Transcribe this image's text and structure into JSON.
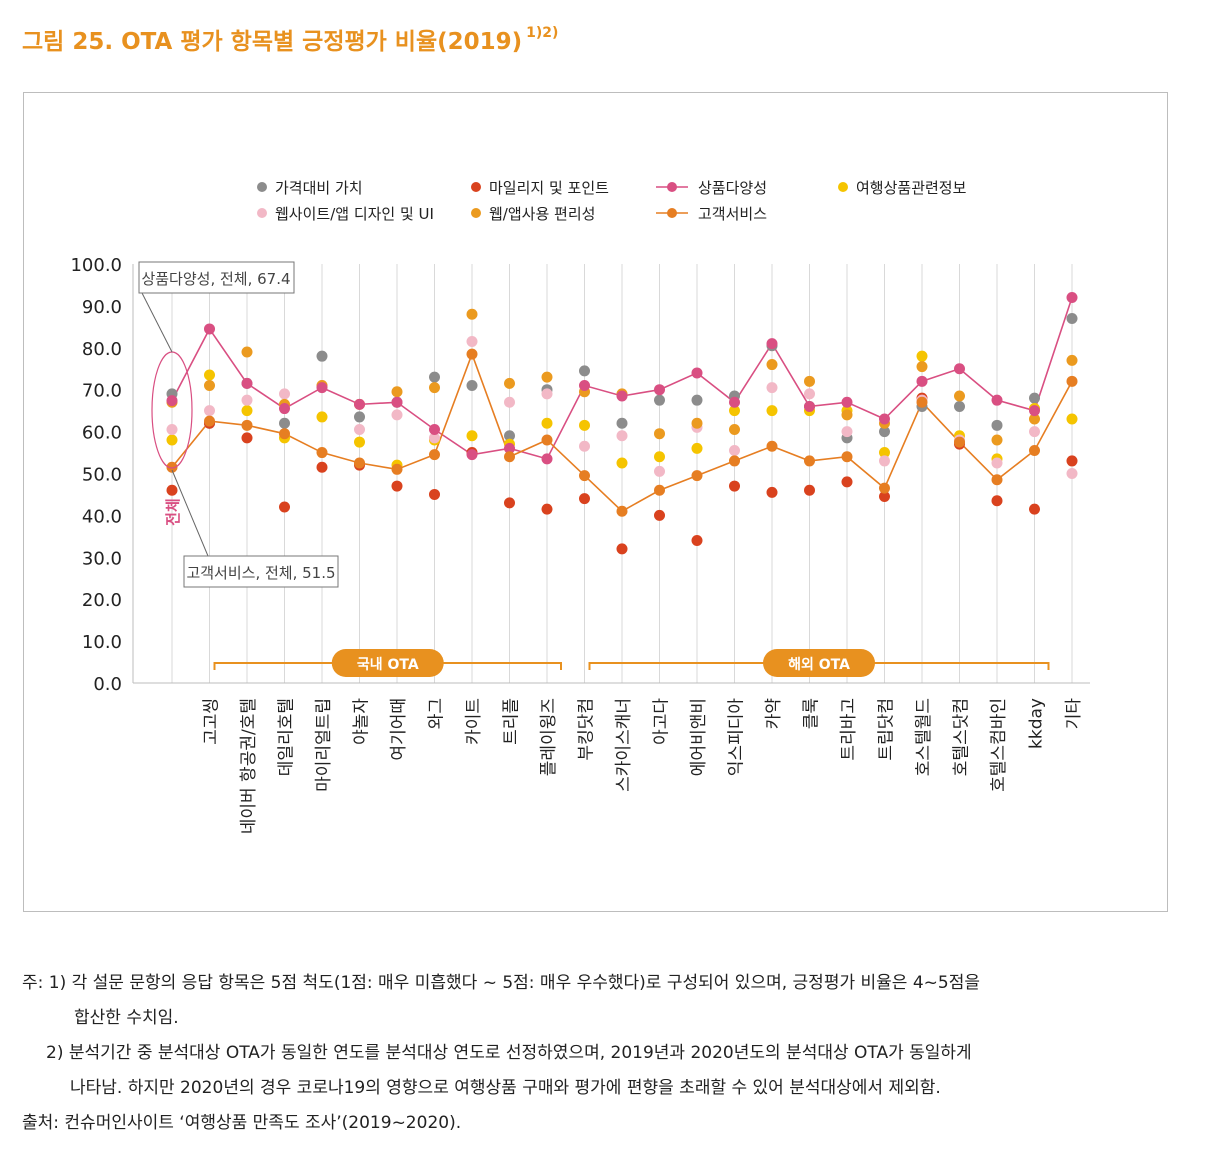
{
  "figure": {
    "title": "그림 25. OTA 평가 항목별 긍정평가 비율(2019)",
    "title_sup": "1)2)"
  },
  "chart_data": {
    "type": "scatter",
    "title": "OTA 평가 항목별 긍정평가 비율(2019)",
    "categories": [
      "전체",
      "고고씽",
      "네이버 항공권/호텔",
      "데일리호텔",
      "마이리얼트립",
      "야놀자",
      "여기어때",
      "와그",
      "카이트",
      "트리플",
      "플레이윙즈",
      "부킹닷컴",
      "스카이스캐너",
      "아고다",
      "에어비앤비",
      "익스피디아",
      "카약",
      "클룩",
      "트리바고",
      "트립닷컴",
      "호스텔월드",
      "호텔스닷컴",
      "호텔스컴바인",
      "kkday",
      "기타"
    ],
    "ylim": [
      0,
      100
    ],
    "yticks": [
      "0.0",
      "10.0",
      "20.0",
      "30.0",
      "40.0",
      "50.0",
      "60.0",
      "70.0",
      "80.0",
      "90.0",
      "100.0"
    ],
    "series": [
      {
        "name": "가격대비 가치",
        "color": "#8c8c8c",
        "line": false,
        "values": [
          69,
          62,
          71.5,
          62,
          78,
          63.5,
          67,
          73,
          71,
          59,
          70,
          74.5,
          62,
          67.5,
          67.5,
          68.5,
          80.5,
          66,
          58.5,
          60,
          66,
          66,
          61.5,
          68,
          87
        ]
      },
      {
        "name": "마일리지 및 포인트",
        "color": "#d9421e",
        "line": false,
        "values": [
          46,
          62,
          58.5,
          42,
          51.5,
          52,
          47,
          45,
          55,
          43,
          41.5,
          44,
          32,
          40,
          34,
          47,
          45.5,
          46,
          48,
          44.5,
          68,
          57,
          43.5,
          41.5,
          53
        ]
      },
      {
        "name": "상품다양성",
        "color": "#d94f82",
        "line": true,
        "values": [
          67.4,
          84.5,
          71.5,
          65.5,
          70.5,
          66.5,
          67,
          60.5,
          54.5,
          56,
          53.5,
          71,
          68.5,
          70,
          74,
          67,
          81,
          66,
          67,
          63,
          72,
          75,
          67.5,
          65,
          92
        ]
      },
      {
        "name": "여행상품관련정보",
        "color": "#f5c400",
        "line": false,
        "values": [
          58,
          73.5,
          65,
          58.5,
          63.5,
          57.5,
          52,
          58,
          59,
          57,
          62,
          61.5,
          52.5,
          54,
          56,
          65,
          65,
          65,
          65,
          55,
          78,
          59,
          53.5,
          65.5,
          63
        ]
      },
      {
        "name": "웹사이트/앱 디자인 및 UI",
        "color": "#f2b8c6",
        "line": false,
        "values": [
          60.5,
          65,
          67.5,
          69,
          71,
          60.5,
          64,
          58.5,
          81.5,
          67,
          69,
          56.5,
          59,
          50.5,
          61,
          55.5,
          70.5,
          69,
          60,
          53,
          67.5,
          58,
          52.5,
          60,
          50
        ]
      },
      {
        "name": "웹/앱사용 편리성",
        "color": "#eb9a1f",
        "line": false,
        "values": [
          67,
          71,
          79,
          66.5,
          71,
          66.5,
          69.5,
          70.5,
          88,
          71.5,
          73,
          69.5,
          69,
          59.5,
          62,
          60.5,
          76,
          72,
          64,
          62,
          75.5,
          68.5,
          58,
          63,
          77
        ]
      },
      {
        "name": "고객서비스",
        "color": "#e67e22",
        "line": true,
        "values": [
          51.5,
          62.5,
          61.5,
          59.5,
          55,
          52.5,
          51,
          54.5,
          78.5,
          54,
          58,
          49.5,
          41,
          46,
          49.5,
          53,
          56.5,
          53,
          54,
          46.5,
          67,
          57.5,
          48.5,
          55.5,
          72
        ]
      }
    ],
    "group_labels": [
      "국내 OTA",
      "해외 OTA"
    ],
    "annotations": [
      "상품다양성, 전체, 67.4",
      "고객서비스, 전체, 51.5"
    ],
    "legend_position": "top",
    "grid": true
  },
  "notes": {
    "note1_line1": "주: 1) 각 설문 문항의 응답 항목은 5점 척도(1점: 매우 미흡했다 ~ 5점: 매우 우수했다)로 구성되어 있으며, 긍정평가 비율은 4~5점을",
    "note1_line2": "합산한 수치임.",
    "note2_line1": "2) 분석기간 중 분석대상 OTA가 동일한 연도를 분석대상 연도로 선정하였으며, 2019년과 2020년도의 분석대상 OTA가 동일하게",
    "note2_line2": "나타남. 하지만 2020년의 경우 코로나19의 영향으로 여행상품 구매와 평가에 편향을 초래할 수 있어 분석대상에서 제외함.",
    "source": "출처: 컨슈머인사이트 ‘여행상품 만족도 조사’(2019~2020)."
  }
}
